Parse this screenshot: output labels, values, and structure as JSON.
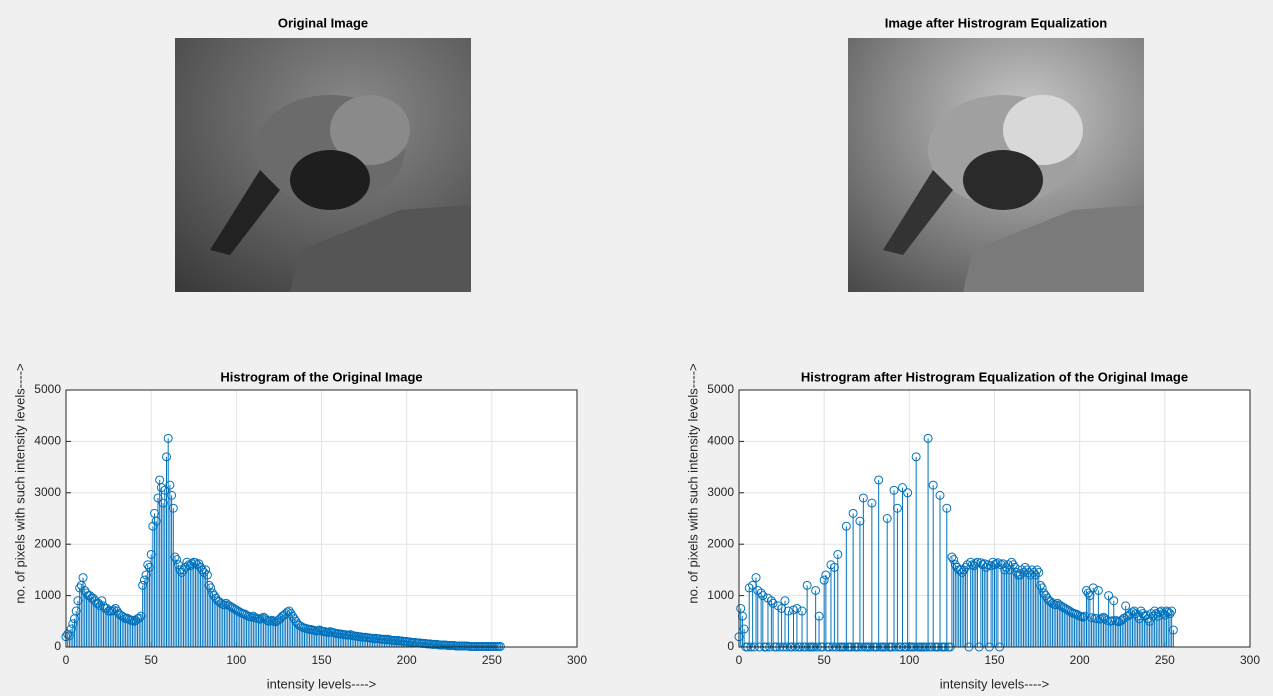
{
  "images": [
    {
      "title": "Original Image"
    },
    {
      "title": "Image after Histrogram Equalization"
    }
  ],
  "chart_data": [
    {
      "type": "stem",
      "title": "Histrogram of the Original Image",
      "x_label": "intensity levels---->",
      "y_label": "no. of pixels with such intensity levels---->",
      "color": "#0072bd",
      "xlim": [
        0,
        300
      ],
      "xticks": [
        0,
        50,
        100,
        150,
        200,
        250,
        300
      ],
      "ylim": [
        0,
        5000
      ],
      "yticks": [
        0,
        1000,
        2000,
        3000,
        4000,
        5000
      ],
      "grid": true,
      "x": [
        0,
        1,
        2,
        3,
        4,
        5,
        6,
        7,
        8,
        9,
        10,
        11,
        12,
        13,
        14,
        15,
        16,
        17,
        18,
        19,
        20,
        21,
        22,
        23,
        24,
        25,
        26,
        27,
        28,
        29,
        30,
        31,
        32,
        33,
        34,
        35,
        36,
        37,
        38,
        39,
        40,
        41,
        42,
        43,
        44,
        45,
        46,
        47,
        48,
        49,
        50,
        51,
        52,
        53,
        54,
        55,
        56,
        57,
        58,
        59,
        60,
        61,
        62,
        63,
        64,
        65,
        66,
        67,
        68,
        69,
        70,
        71,
        72,
        73,
        74,
        75,
        76,
        77,
        78,
        79,
        80,
        81,
        82,
        83,
        84,
        85,
        86,
        87,
        88,
        89,
        90,
        91,
        92,
        93,
        94,
        95,
        96,
        97,
        98,
        99,
        100,
        101,
        102,
        103,
        104,
        105,
        106,
        107,
        108,
        109,
        110,
        111,
        112,
        113,
        114,
        115,
        116,
        117,
        118,
        119,
        120,
        121,
        122,
        123,
        124,
        125,
        126,
        127,
        128,
        129,
        130,
        131,
        132,
        133,
        134,
        135,
        136,
        137,
        138,
        139,
        140,
        141,
        142,
        143,
        144,
        145,
        146,
        147,
        148,
        149,
        150,
        151,
        152,
        153,
        154,
        155,
        156,
        157,
        158,
        159,
        160,
        161,
        162,
        163,
        164,
        165,
        166,
        167,
        168,
        169,
        170,
        171,
        172,
        173,
        174,
        175,
        176,
        177,
        178,
        179,
        180,
        181,
        182,
        183,
        184,
        185,
        186,
        187,
        188,
        189,
        190,
        191,
        192,
        193,
        194,
        195,
        196,
        197,
        198,
        199,
        200,
        201,
        202,
        203,
        204,
        205,
        206,
        207,
        208,
        209,
        210,
        211,
        212,
        213,
        214,
        215,
        216,
        217,
        218,
        219,
        220,
        221,
        222,
        223,
        224,
        225,
        226,
        227,
        228,
        229,
        230,
        231,
        232,
        233,
        234,
        235,
        236,
        237,
        238,
        239,
        240,
        241,
        242,
        243,
        244,
        245,
        246,
        247,
        248,
        249,
        250,
        251,
        252,
        253,
        254,
        255
      ],
      "values": [
        200,
        250,
        220,
        350,
        450,
        550,
        700,
        900,
        1150,
        1200,
        1350,
        1100,
        1050,
        1000,
        1000,
        950,
        950,
        900,
        850,
        850,
        800,
        900,
        800,
        750,
        750,
        700,
        700,
        700,
        720,
        750,
        700,
        650,
        620,
        600,
        580,
        550,
        560,
        540,
        520,
        520,
        500,
        520,
        550,
        560,
        600,
        1200,
        1300,
        1400,
        1600,
        1550,
        1800,
        2350,
        2600,
        2450,
        2900,
        3250,
        3100,
        2800,
        3050,
        3700,
        4060,
        3150,
        2950,
        2700,
        1750,
        1700,
        1600,
        1500,
        1450,
        1500,
        1550,
        1650,
        1600,
        1580,
        1620,
        1650,
        1640,
        1600,
        1620,
        1550,
        1500,
        1450,
        1500,
        1400,
        1200,
        1150,
        1050,
        1000,
        950,
        900,
        880,
        850,
        830,
        820,
        850,
        820,
        800,
        780,
        760,
        740,
        720,
        700,
        680,
        660,
        650,
        640,
        620,
        600,
        590,
        580,
        600,
        570,
        560,
        550,
        540,
        560,
        580,
        550,
        520,
        500,
        510,
        520,
        500,
        490,
        510,
        530,
        560,
        600,
        620,
        650,
        680,
        700,
        650,
        600,
        550,
        500,
        450,
        420,
        400,
        380,
        370,
        360,
        350,
        340,
        340,
        330,
        320,
        310,
        320,
        330,
        310,
        300,
        300,
        290,
        280,
        300,
        290,
        280,
        270,
        260,
        260,
        250,
        250,
        240,
        240,
        230,
        230,
        240,
        220,
        220,
        210,
        210,
        200,
        200,
        190,
        190,
        190,
        180,
        180,
        170,
        170,
        160,
        170,
        160,
        160,
        150,
        150,
        150,
        140,
        150,
        140,
        130,
        130,
        130,
        120,
        130,
        120,
        120,
        110,
        110,
        110,
        100,
        100,
        90,
        90,
        90,
        80,
        80,
        80,
        70,
        70,
        70,
        60,
        60,
        60,
        50,
        50,
        50,
        50,
        40,
        40,
        40,
        40,
        40,
        30,
        30,
        30,
        30,
        30,
        20,
        20,
        20,
        20,
        20,
        20,
        20,
        20,
        10,
        10,
        10,
        10,
        10,
        10,
        10,
        10,
        10,
        10,
        10,
        10,
        10,
        10,
        10,
        10,
        10,
        10,
        10
      ]
    },
    {
      "type": "stem",
      "title": "Histrogram after Histrogram Equalization of the Original Image",
      "x_label": "intensity levels---->",
      "y_label": "no. of pixels with such intensity levels---->",
      "color": "#0072bd",
      "xlim": [
        0,
        300
      ],
      "xticks": [
        0,
        50,
        100,
        150,
        200,
        250,
        300
      ],
      "ylim": [
        0,
        5000
      ],
      "yticks": [
        0,
        1000,
        2000,
        3000,
        4000,
        5000
      ],
      "grid": true,
      "x": [
        0,
        1,
        2,
        3,
        4,
        5,
        6,
        7,
        8,
        9,
        10,
        11,
        12,
        13,
        14,
        15,
        16,
        17,
        18,
        19,
        20,
        21,
        22,
        23,
        24,
        25,
        26,
        27,
        28,
        29,
        30,
        31,
        32,
        33,
        34,
        35,
        36,
        37,
        38,
        39,
        40,
        41,
        42,
        43,
        44,
        45,
        46,
        47,
        48,
        49,
        50,
        51,
        52,
        53,
        54,
        55,
        56,
        57,
        58,
        59,
        60,
        61,
        62,
        63,
        64,
        65,
        66,
        67,
        68,
        69,
        70,
        71,
        72,
        73,
        74,
        75,
        76,
        77,
        78,
        79,
        80,
        81,
        82,
        83,
        84,
        85,
        86,
        87,
        88,
        89,
        90,
        91,
        92,
        93,
        94,
        95,
        96,
        97,
        98,
        99,
        100,
        101,
        102,
        103,
        104,
        105,
        106,
        107,
        108,
        109,
        110,
        111,
        112,
        113,
        114,
        115,
        116,
        117,
        118,
        119,
        120,
        121,
        122,
        123,
        124,
        125,
        126,
        127,
        128,
        129,
        130,
        131,
        132,
        133,
        134,
        135,
        136,
        137,
        138,
        139,
        140,
        141,
        142,
        143,
        144,
        145,
        146,
        147,
        148,
        149,
        150,
        151,
        152,
        153,
        154,
        155,
        156,
        157,
        158,
        159,
        160,
        161,
        162,
        163,
        164,
        165,
        166,
        167,
        168,
        169,
        170,
        171,
        172,
        173,
        174,
        175,
        176,
        177,
        178,
        179,
        180,
        181,
        182,
        183,
        184,
        185,
        186,
        187,
        188,
        189,
        190,
        191,
        192,
        193,
        194,
        195,
        196,
        197,
        198,
        199,
        200,
        201,
        202,
        203,
        204,
        205,
        206,
        207,
        208,
        209,
        210,
        211,
        212,
        213,
        214,
        215,
        216,
        217,
        218,
        219,
        220,
        221,
        222,
        223,
        224,
        225,
        226,
        227,
        228,
        229,
        230,
        231,
        232,
        233,
        234,
        235,
        236,
        237,
        238,
        239,
        240,
        241,
        242,
        243,
        244,
        245,
        246,
        247,
        248,
        249,
        250,
        251,
        252,
        253,
        254,
        255
      ],
      "values": [
        200,
        750,
        600,
        350,
        0,
        0,
        1150,
        0,
        1200,
        0,
        1350,
        1100,
        0,
        1050,
        1000,
        0,
        0,
        950,
        0,
        900,
        850,
        0,
        0,
        800,
        0,
        750,
        0,
        900,
        0,
        700,
        0,
        0,
        720,
        0,
        750,
        0,
        0,
        700,
        0,
        0,
        1200,
        0,
        0,
        0,
        0,
        1100,
        0,
        600,
        0,
        0,
        1300,
        1400,
        0,
        0,
        1600,
        0,
        1550,
        0,
        1800,
        0,
        0,
        0,
        0,
        2350,
        0,
        0,
        0,
        2600,
        0,
        0,
        0,
        2450,
        0,
        2900,
        0,
        0,
        0,
        0,
        2800,
        0,
        0,
        0,
        3250,
        0,
        0,
        0,
        0,
        2500,
        0,
        0,
        0,
        3050,
        0,
        2700,
        0,
        0,
        3100,
        0,
        0,
        3000,
        0,
        0,
        0,
        0,
        3700,
        0,
        0,
        0,
        0,
        0,
        0,
        4060,
        0,
        0,
        3150,
        0,
        0,
        0,
        2950,
        0,
        0,
        0,
        2700,
        0,
        0,
        1750,
        1700,
        1600,
        1550,
        1500,
        1500,
        1450,
        1500,
        1550,
        1600,
        0,
        1650,
        1600,
        1580,
        1620,
        1650,
        0,
        1640,
        1600,
        1620,
        1550,
        1600,
        0,
        1580,
        1650,
        1600,
        1620,
        1640,
        0,
        1600,
        1620,
        1500,
        1550,
        1600,
        1500,
        1650,
        1600,
        1550,
        1450,
        1400,
        1400,
        1500,
        1450,
        1550,
        1500,
        1450,
        1400,
        1500,
        1450,
        1400,
        1500,
        1450,
        1200,
        1150,
        1050,
        1000,
        950,
        900,
        880,
        850,
        830,
        820,
        850,
        820,
        800,
        780,
        760,
        740,
        720,
        700,
        680,
        660,
        650,
        640,
        620,
        600,
        590,
        580,
        600,
        1100,
        1050,
        1000,
        570,
        1150,
        560,
        550,
        1100,
        540,
        560,
        580,
        550,
        520,
        1000,
        500,
        510,
        900,
        520,
        500,
        490,
        510,
        530,
        560,
        800,
        600,
        620,
        650,
        680,
        700,
        650,
        600,
        550,
        700,
        650,
        600,
        620,
        550,
        500,
        650,
        600,
        700,
        650,
        600,
        680,
        700,
        650,
        620,
        700,
        680,
        650,
        700,
        330
      ]
    }
  ]
}
